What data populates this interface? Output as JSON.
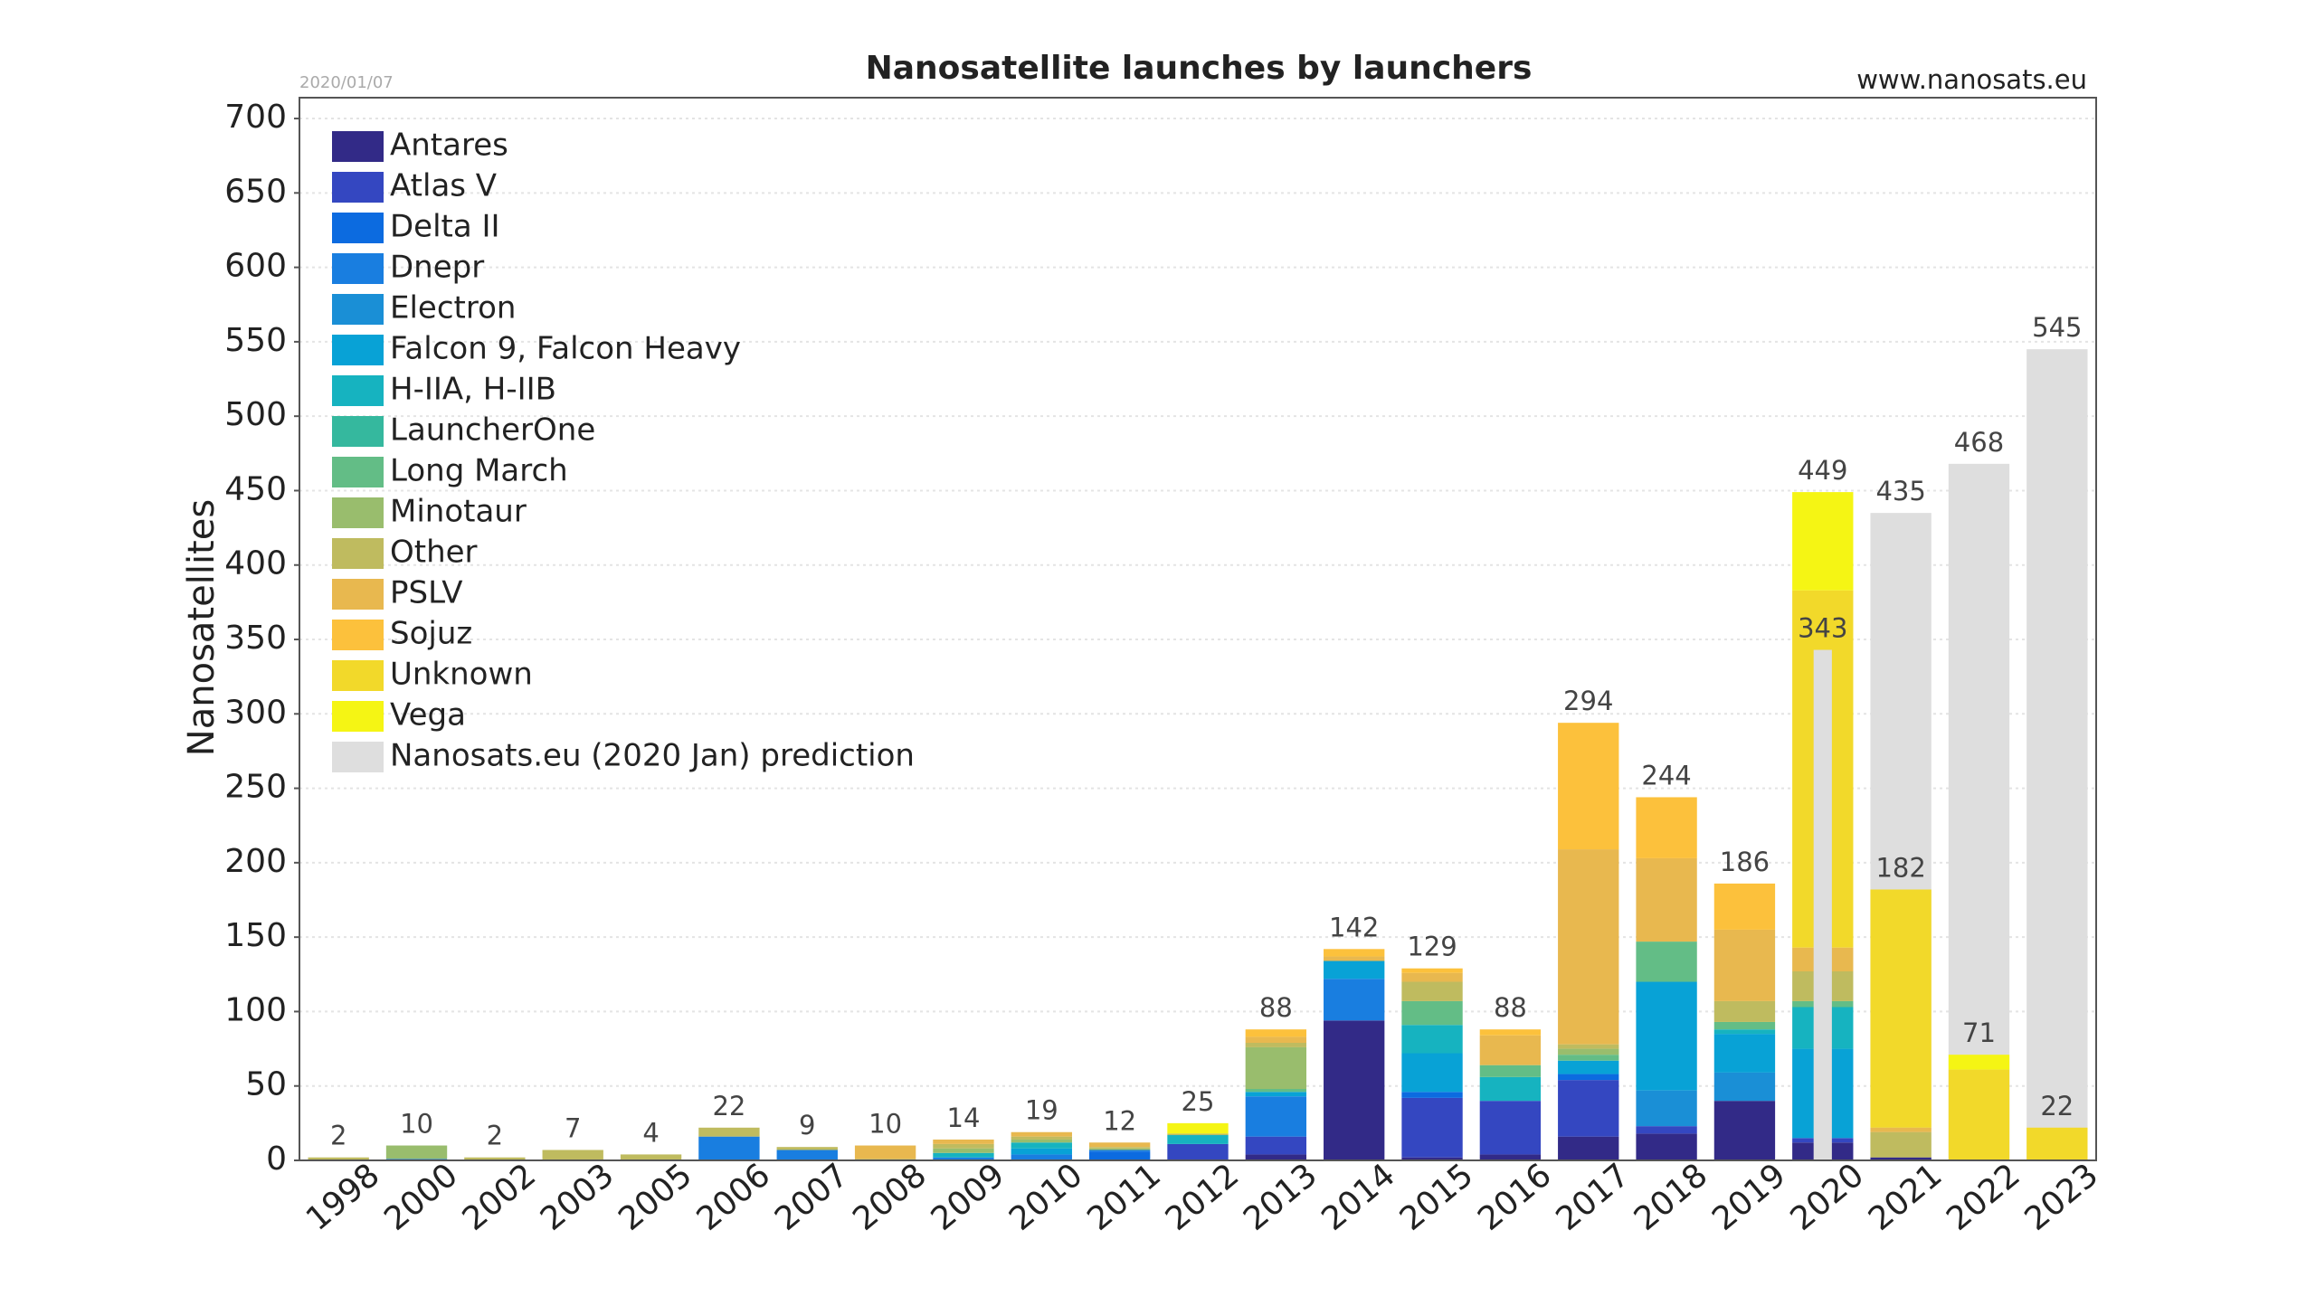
{
  "chart_data": {
    "type": "bar",
    "stacked": true,
    "title": "Nanosatellite launches by launchers",
    "date": "2020/01/07",
    "source": "www.nanosats.eu",
    "y_label": "Nanosatellites",
    "categories": [
      "1998",
      "2000",
      "2002",
      "2003",
      "2005",
      "2006",
      "2007",
      "2008",
      "2009",
      "2010",
      "2011",
      "2012",
      "2013",
      "2014",
      "2015",
      "2016",
      "2017",
      "2018",
      "2019",
      "2020",
      "2021",
      "2022",
      "2023"
    ],
    "totals": [
      2,
      10,
      2,
      7,
      4,
      22,
      9,
      10,
      14,
      19,
      12,
      25,
      88,
      142,
      129,
      88,
      294,
      244,
      186,
      449,
      182,
      71,
      22
    ],
    "series": [
      {
        "name": "Antares",
        "color": "#322a87",
        "values": [
          0,
          0,
          0,
          0,
          0,
          0,
          0,
          0,
          0,
          0,
          0,
          0,
          4,
          94,
          2,
          4,
          16,
          18,
          40,
          12,
          2,
          0,
          0
        ]
      },
      {
        "name": "Atlas V",
        "color": "#3447c1",
        "values": [
          0,
          0,
          0,
          0,
          0,
          0,
          0,
          0,
          0,
          0,
          0,
          11,
          12,
          0,
          40,
          36,
          38,
          5,
          0,
          3,
          0,
          0,
          0
        ]
      },
      {
        "name": "Delta II",
        "color": "#0c6be0",
        "values": [
          0,
          0,
          0,
          0,
          0,
          0,
          0,
          0,
          0,
          0,
          6,
          0,
          0,
          0,
          4,
          0,
          4,
          0,
          0,
          0,
          0,
          0,
          0
        ]
      },
      {
        "name": "Dnepr",
        "color": "#197ee0",
        "values": [
          0,
          1,
          0,
          0,
          0,
          16,
          7,
          0,
          2,
          4,
          1,
          0,
          27,
          28,
          0,
          0,
          0,
          0,
          0,
          0,
          0,
          0,
          0
        ]
      },
      {
        "name": "Electron",
        "color": "#1a8fd6",
        "values": [
          0,
          0,
          0,
          0,
          0,
          0,
          0,
          0,
          0,
          0,
          0,
          0,
          0,
          0,
          0,
          0,
          0,
          24,
          19,
          0,
          0,
          0,
          0
        ]
      },
      {
        "name": "Falcon 9, Falcon Heavy",
        "color": "#08a2d6",
        "values": [
          0,
          0,
          0,
          0,
          0,
          0,
          0,
          0,
          0,
          4,
          0,
          0,
          3,
          12,
          26,
          0,
          9,
          73,
          26,
          60,
          0,
          0,
          0
        ]
      },
      {
        "name": "H-IIA, H-IIB",
        "color": "#16b3c0",
        "values": [
          0,
          0,
          0,
          0,
          0,
          0,
          0,
          0,
          3,
          4,
          0,
          6,
          0,
          0,
          19,
          16,
          0,
          0,
          3,
          28,
          0,
          0,
          0
        ]
      },
      {
        "name": "LauncherOne",
        "color": "#35b89e",
        "values": [
          0,
          0,
          0,
          0,
          0,
          0,
          0,
          0,
          0,
          0,
          0,
          0,
          0,
          0,
          0,
          0,
          0,
          0,
          0,
          0,
          0,
          0,
          0
        ]
      },
      {
        "name": "Long March",
        "color": "#63bd86",
        "values": [
          0,
          0,
          0,
          0,
          0,
          0,
          0,
          0,
          0,
          0,
          0,
          0,
          2,
          0,
          16,
          8,
          4,
          27,
          5,
          4,
          0,
          0,
          0
        ]
      },
      {
        "name": "Minotaur",
        "color": "#99bd6d",
        "values": [
          0,
          9,
          0,
          0,
          0,
          0,
          0,
          0,
          3,
          2,
          1,
          0,
          28,
          0,
          0,
          0,
          4,
          0,
          0,
          0,
          0,
          0,
          0
        ]
      },
      {
        "name": "Other",
        "color": "#bfbb5f",
        "values": [
          2,
          0,
          2,
          7,
          4,
          6,
          2,
          1,
          3,
          2,
          1,
          1,
          3,
          0,
          13,
          0,
          3,
          0,
          14,
          20,
          17,
          0,
          0
        ]
      },
      {
        "name": "PSLV",
        "color": "#e8b84f",
        "values": [
          0,
          0,
          0,
          0,
          0,
          0,
          0,
          9,
          3,
          3,
          3,
          0,
          4,
          3,
          6,
          20,
          131,
          56,
          48,
          16,
          3,
          0,
          0
        ]
      },
      {
        "name": "Sojuz",
        "color": "#fcc13c",
        "values": [
          0,
          0,
          0,
          0,
          0,
          0,
          0,
          0,
          0,
          0,
          0,
          0,
          5,
          5,
          3,
          4,
          85,
          41,
          31,
          0,
          0,
          0,
          0
        ]
      },
      {
        "name": "Unknown",
        "color": "#f2d92a",
        "values": [
          0,
          0,
          0,
          0,
          0,
          0,
          0,
          0,
          0,
          0,
          0,
          0,
          0,
          0,
          0,
          0,
          0,
          0,
          0,
          240,
          160,
          61,
          22
        ]
      },
      {
        "name": "Vega",
        "color": "#f5f514",
        "values": [
          0,
          0,
          0,
          0,
          0,
          0,
          0,
          0,
          0,
          0,
          0,
          7,
          0,
          0,
          0,
          0,
          0,
          0,
          0,
          66,
          0,
          10,
          0
        ]
      }
    ],
    "prediction": {
      "name": "Nanosats.eu (2020 Jan) prediction",
      "color": "#dedede",
      "values": [
        null,
        null,
        null,
        null,
        null,
        null,
        null,
        null,
        null,
        null,
        null,
        null,
        null,
        null,
        null,
        null,
        null,
        null,
        null,
        343,
        435,
        468,
        545
      ]
    },
    "ylim": [
      0,
      714
    ],
    "yticks": [
      0,
      50,
      100,
      150,
      200,
      250,
      300,
      350,
      400,
      450,
      500,
      550,
      600,
      650,
      700
    ],
    "grid": true,
    "legend": "upper-left"
  }
}
